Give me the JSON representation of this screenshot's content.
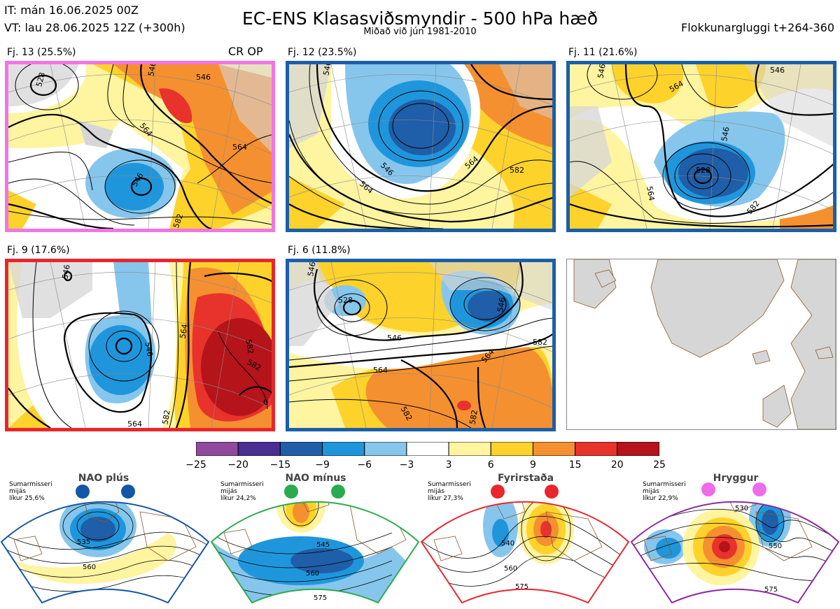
{
  "header": {
    "it": "IT: mán 16.06.2025 00Z",
    "vt": "VT: lau 28.06.2025 12Z  (+300h)",
    "title": "EC-ENS Klasasviðsmyndir - 500 hPa hæð",
    "subtitle": "Miðað við jún 1981-2010",
    "window": "Flokkunargluggi t+264-360"
  },
  "panels": [
    {
      "label": "Fj. 13 (25.5%)",
      "tag": "CR OP",
      "border": "#f075e6",
      "contours": [
        "546",
        "564",
        "564",
        "546",
        "528",
        "582"
      ]
    },
    {
      "label": "Fj. 12 (23.5%)",
      "tag": "",
      "border": "#1a5fa8",
      "contours": [
        "546",
        "564",
        "564",
        "582",
        "546"
      ]
    },
    {
      "label": "Fj. 11 (21.6%)",
      "tag": "",
      "border": "#1a5fa8",
      "contours": [
        "546",
        "564",
        "546",
        "528",
        "564",
        "582",
        "546"
      ]
    },
    {
      "label": "Fj. 9 (17.6%)",
      "tag": "",
      "border": "#e8262d",
      "contours": [
        "546",
        "546",
        "564",
        "582",
        "582",
        "0",
        "564",
        "582"
      ]
    },
    {
      "label": "Fj. 6 (11.8%)",
      "tag": "",
      "border": "#1a5fa8",
      "contours": [
        "546",
        "528",
        "546",
        "546",
        "582",
        "564",
        "564",
        "582",
        "582"
      ]
    }
  ],
  "colorbar": {
    "labels": [
      "−25",
      "−20",
      "−15",
      "−9",
      "−6",
      "−3",
      "3",
      "6",
      "9",
      "15",
      "20",
      "25"
    ],
    "colors": [
      "#8f4a9e",
      "#4a2e92",
      "#1f5ea8",
      "#1f96dc",
      "#86c6ec",
      "#ffffff",
      "#fff4a0",
      "#fdd22b",
      "#f59030",
      "#e8322c",
      "#b5141a"
    ]
  },
  "regimes": [
    {
      "name": "NAO plús",
      "info": [
        "Sumarmisseri",
        "mijás",
        "líkur 25,6%"
      ],
      "color": "#1457a6",
      "contours": [
        "535",
        "560"
      ]
    },
    {
      "name": "NAO mínus",
      "info": [
        "Sumarmisseri",
        "mijás",
        "líkur 24,2%"
      ],
      "color": "#2aac4e",
      "contours": [
        "545",
        "560",
        "575"
      ]
    },
    {
      "name": "Fyrirstaða",
      "info": [
        "Sumarmisseri",
        "mijás",
        "líkur 27,3%"
      ],
      "color": "#e8262d",
      "contours": [
        "540",
        "560",
        "575"
      ]
    },
    {
      "name": "Hryggur",
      "info": [
        "Sumarmisseri",
        "mijás",
        "líkur 22,9%"
      ],
      "color": "#ee6bea",
      "contours": [
        "530",
        "550",
        "575"
      ]
    }
  ]
}
